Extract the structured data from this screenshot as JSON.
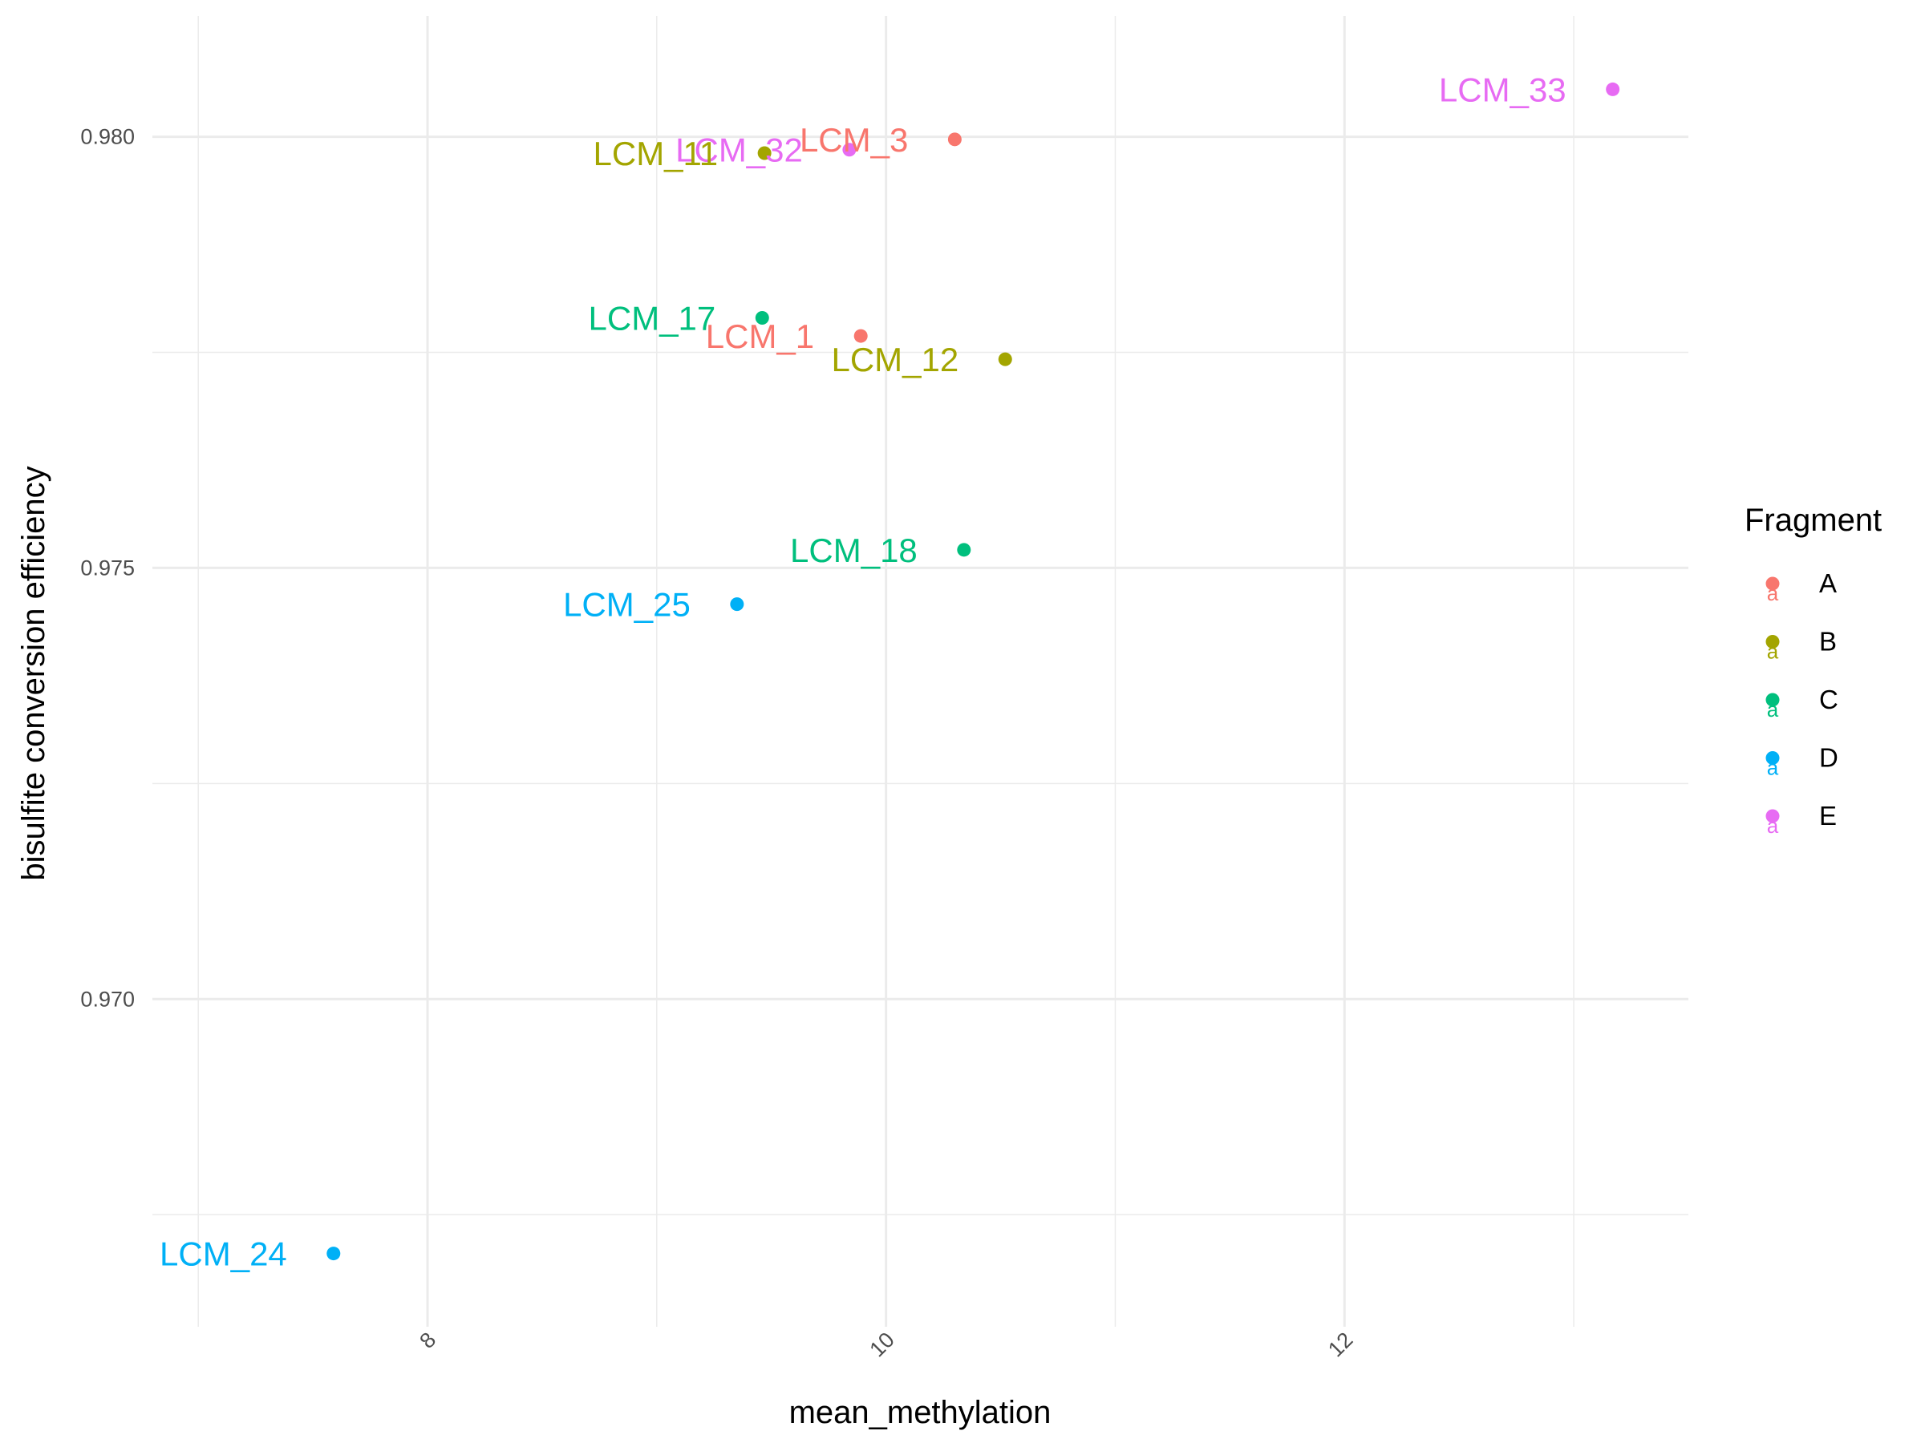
{
  "chart_data": {
    "type": "scatter",
    "xlabel": "mean_methylation",
    "ylabel": "bisulfite conversion efficiency",
    "xlim": [
      6.8,
      13.5
    ],
    "ylim": [
      0.9662,
      0.9814
    ],
    "x_ticks": [
      8,
      10,
      12
    ],
    "x_tick_labels": [
      "8",
      "10",
      "12"
    ],
    "y_ticks": [
      0.97,
      0.975,
      0.98
    ],
    "y_tick_labels": [
      "0.970",
      "0.975",
      "0.980"
    ],
    "grid": true,
    "legend": {
      "title": "Fragment",
      "position": "right",
      "entries": [
        {
          "name": "A",
          "color": "#F8766D"
        },
        {
          "name": "B",
          "color": "#A3A500"
        },
        {
          "name": "C",
          "color": "#00BF7D"
        },
        {
          "name": "D",
          "color": "#00B0F6"
        },
        {
          "name": "E",
          "color": "#E76BF3"
        }
      ]
    },
    "points": [
      {
        "label": "LCM_33",
        "fragment": "E",
        "x": 13.17,
        "y": 0.98055
      },
      {
        "label": "LCM_3",
        "fragment": "A",
        "x": 10.3,
        "y": 0.97997
      },
      {
        "label": "LCM_32",
        "fragment": "E",
        "x": 9.84,
        "y": 0.97985
      },
      {
        "label": "LCM_11",
        "fragment": "B",
        "x": 9.47,
        "y": 0.97981
      },
      {
        "label": "LCM_17",
        "fragment": "C",
        "x": 9.46,
        "y": 0.9779
      },
      {
        "label": "LCM_1",
        "fragment": "A",
        "x": 9.89,
        "y": 0.97769
      },
      {
        "label": "LCM_12",
        "fragment": "B",
        "x": 10.52,
        "y": 0.97742
      },
      {
        "label": "LCM_18",
        "fragment": "C",
        "x": 10.34,
        "y": 0.97521
      },
      {
        "label": "LCM_25",
        "fragment": "D",
        "x": 9.35,
        "y": 0.97458
      },
      {
        "label": "LCM_24",
        "fragment": "D",
        "x": 7.59,
        "y": 0.96705
      }
    ]
  }
}
